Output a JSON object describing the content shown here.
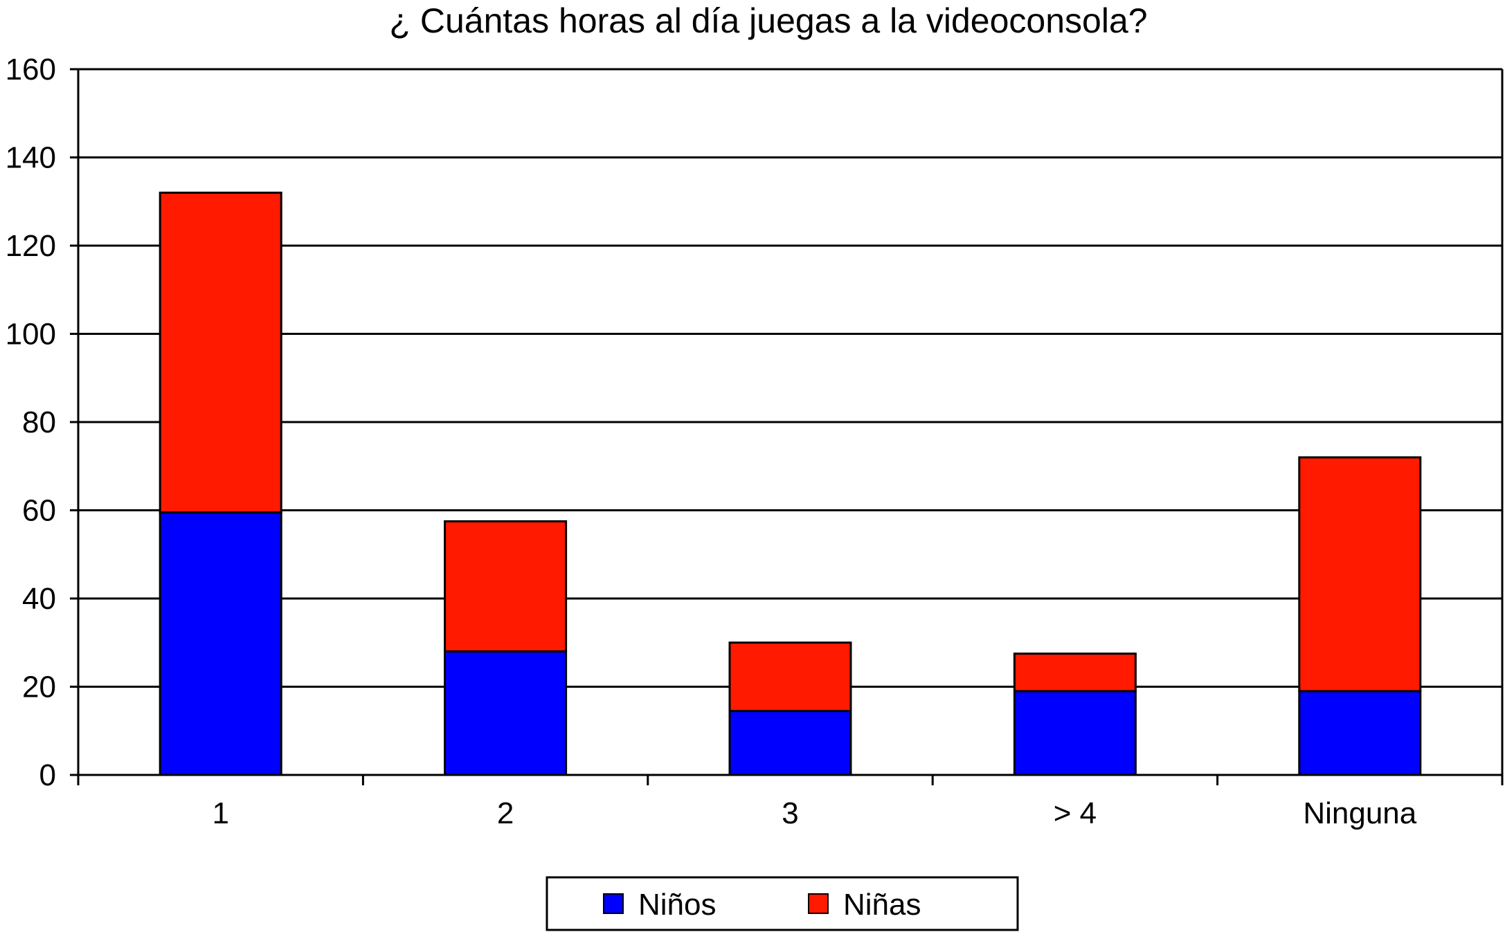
{
  "chart_data": {
    "type": "bar",
    "stacked": true,
    "title": "¿ Cuántas horas al día juegas a la videoconsola?",
    "xlabel": "",
    "ylabel": "",
    "categories": [
      "1",
      "2",
      "3",
      "> 4",
      "Ninguna"
    ],
    "series": [
      {
        "name": "Niños",
        "color": "#0000ff",
        "values": [
          59.5,
          28,
          14.5,
          19,
          19
        ]
      },
      {
        "name": "Niñas",
        "color": "#ff1a00",
        "values": [
          72.5,
          29.5,
          15.5,
          8.5,
          53
        ]
      }
    ],
    "ylim": [
      0,
      160
    ],
    "yticks": [
      "0",
      "20",
      "40",
      "60",
      "80",
      "100",
      "120",
      "140",
      "160"
    ],
    "grid": true,
    "legend": "bottom"
  }
}
